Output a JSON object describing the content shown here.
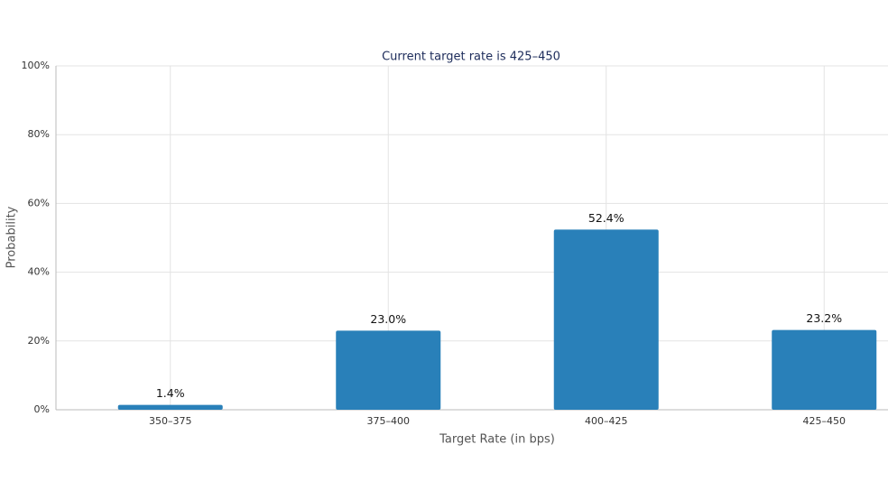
{
  "chart_data": {
    "type": "bar",
    "title": "Current target rate is 425–450",
    "x_label": "Target Rate (in bps)",
    "y_label": "Probability",
    "categories": [
      "350–375",
      "375–400",
      "400–425",
      "425–450"
    ],
    "values": [
      1.4,
      23,
      52.4,
      23.2
    ],
    "value_labels": [
      "1.4%",
      "23.0%",
      "52.4%",
      "23.2%"
    ],
    "color": "#2980b9",
    "ylim": [
      0,
      100
    ],
    "yticks": [
      {
        "value": 0,
        "label": "0%"
      },
      {
        "value": 20,
        "label": "20%"
      },
      {
        "value": 40,
        "label": "40%"
      },
      {
        "value": 60,
        "label": "60%"
      },
      {
        "value": 80,
        "label": "80%"
      },
      {
        "value": 100,
        "label": "100%"
      }
    ],
    "grid": true
  }
}
